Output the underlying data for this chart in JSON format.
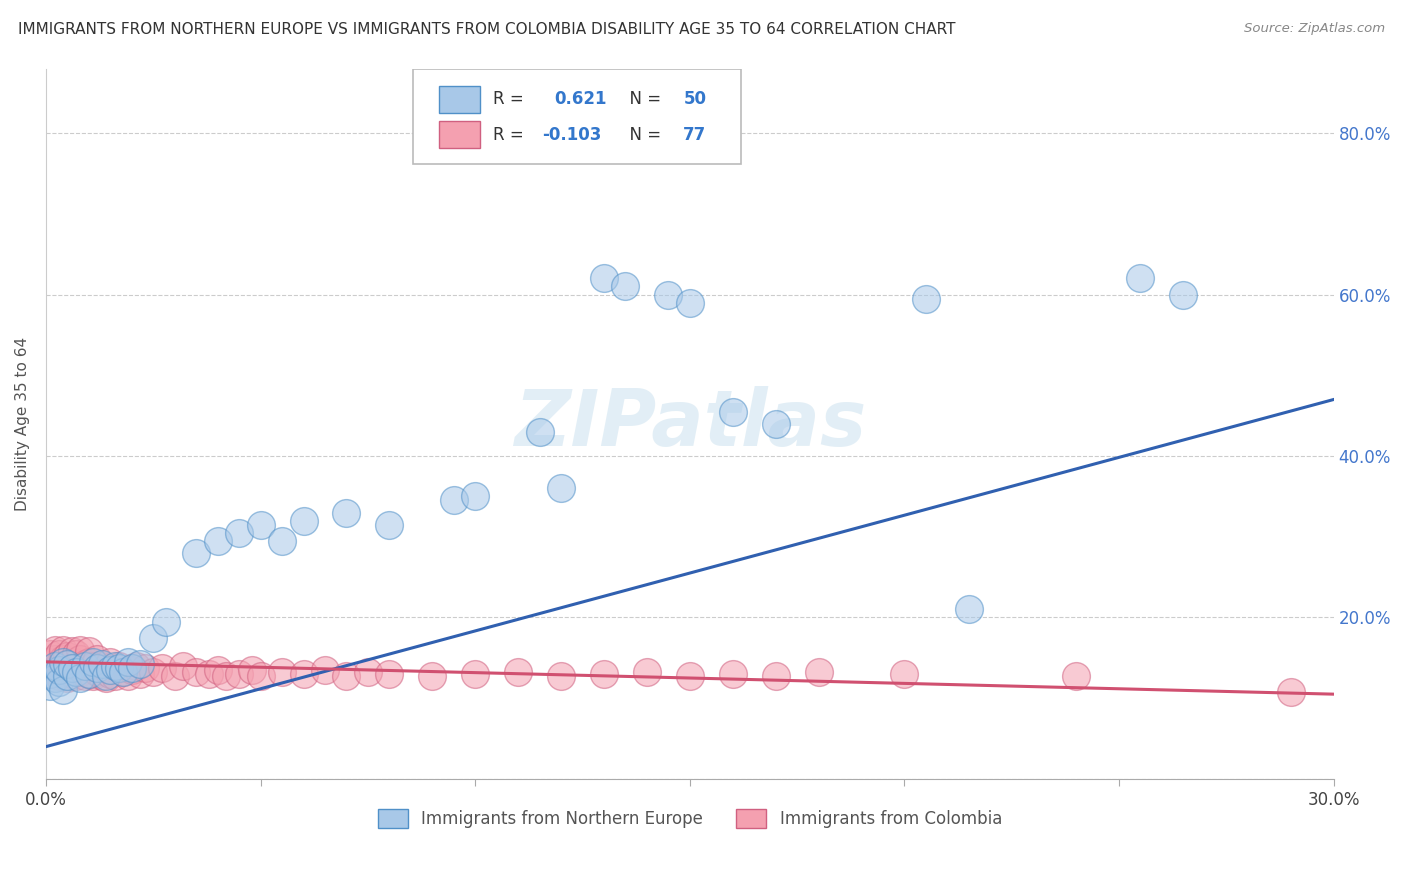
{
  "title": "IMMIGRANTS FROM NORTHERN EUROPE VS IMMIGRANTS FROM COLOMBIA DISABILITY AGE 35 TO 64 CORRELATION CHART",
  "source": "Source: ZipAtlas.com",
  "ylabel": "Disability Age 35 to 64",
  "xlim": [
    0.0,
    0.3
  ],
  "ylim": [
    0.0,
    0.88
  ],
  "xticks": [
    0.0,
    0.05,
    0.1,
    0.15,
    0.2,
    0.25,
    0.3
  ],
  "xticklabels": [
    "0.0%",
    "",
    "",
    "",
    "",
    "",
    "30.0%"
  ],
  "yticks": [
    0.0,
    0.2,
    0.4,
    0.6,
    0.8
  ],
  "yticklabels": [
    "",
    "20.0%",
    "40.0%",
    "60.0%",
    "80.0%"
  ],
  "r_blue": 0.621,
  "n_blue": 50,
  "r_pink": -0.103,
  "n_pink": 77,
  "blue_color": "#a8c8e8",
  "pink_color": "#f4a0b0",
  "blue_edge_color": "#5090c8",
  "pink_edge_color": "#d06080",
  "blue_line_color": "#3060b0",
  "pink_line_color": "#d05070",
  "legend_label_blue": "Immigrants from Northern Europe",
  "legend_label_pink": "Immigrants from Colombia",
  "watermark": "ZIPatlas",
  "blue_line_x": [
    0.0,
    0.3
  ],
  "blue_line_y": [
    0.04,
    0.47
  ],
  "pink_line_x": [
    0.0,
    0.3
  ],
  "pink_line_y": [
    0.145,
    0.105
  ],
  "blue_scatter_x": [
    0.001,
    0.001,
    0.002,
    0.002,
    0.003,
    0.003,
    0.004,
    0.004,
    0.005,
    0.005,
    0.006,
    0.007,
    0.008,
    0.009,
    0.01,
    0.011,
    0.012,
    0.013,
    0.014,
    0.015,
    0.016,
    0.017,
    0.018,
    0.019,
    0.02,
    0.022,
    0.025,
    0.028,
    0.035,
    0.04,
    0.045,
    0.05,
    0.055,
    0.06,
    0.07,
    0.08,
    0.095,
    0.1,
    0.115,
    0.12,
    0.13,
    0.135,
    0.145,
    0.15,
    0.16,
    0.17,
    0.205,
    0.215,
    0.255,
    0.265
  ],
  "blue_scatter_y": [
    0.115,
    0.13,
    0.125,
    0.14,
    0.12,
    0.135,
    0.11,
    0.145,
    0.128,
    0.142,
    0.138,
    0.132,
    0.125,
    0.14,
    0.13,
    0.145,
    0.138,
    0.142,
    0.128,
    0.135,
    0.14,
    0.138,
    0.132,
    0.145,
    0.138,
    0.142,
    0.175,
    0.195,
    0.28,
    0.295,
    0.305,
    0.315,
    0.295,
    0.32,
    0.33,
    0.315,
    0.345,
    0.35,
    0.43,
    0.36,
    0.62,
    0.61,
    0.6,
    0.59,
    0.455,
    0.44,
    0.595,
    0.21,
    0.62,
    0.6
  ],
  "pink_scatter_x": [
    0.001,
    0.001,
    0.001,
    0.002,
    0.002,
    0.002,
    0.003,
    0.003,
    0.003,
    0.004,
    0.004,
    0.004,
    0.005,
    0.005,
    0.005,
    0.006,
    0.006,
    0.006,
    0.007,
    0.007,
    0.007,
    0.008,
    0.008,
    0.008,
    0.009,
    0.009,
    0.01,
    0.01,
    0.01,
    0.011,
    0.011,
    0.012,
    0.012,
    0.013,
    0.013,
    0.014,
    0.014,
    0.015,
    0.015,
    0.016,
    0.017,
    0.018,
    0.019,
    0.02,
    0.021,
    0.022,
    0.023,
    0.025,
    0.027,
    0.03,
    0.032,
    0.035,
    0.038,
    0.04,
    0.042,
    0.045,
    0.048,
    0.05,
    0.055,
    0.06,
    0.065,
    0.07,
    0.075,
    0.08,
    0.09,
    0.1,
    0.11,
    0.12,
    0.13,
    0.14,
    0.15,
    0.16,
    0.17,
    0.18,
    0.2,
    0.24,
    0.29
  ],
  "pink_scatter_y": [
    0.13,
    0.145,
    0.155,
    0.135,
    0.148,
    0.16,
    0.128,
    0.142,
    0.155,
    0.132,
    0.148,
    0.16,
    0.125,
    0.138,
    0.152,
    0.13,
    0.145,
    0.158,
    0.128,
    0.14,
    0.155,
    0.132,
    0.148,
    0.16,
    0.128,
    0.142,
    0.13,
    0.145,
    0.158,
    0.128,
    0.14,
    0.132,
    0.148,
    0.128,
    0.14,
    0.125,
    0.138,
    0.13,
    0.145,
    0.128,
    0.14,
    0.132,
    0.128,
    0.135,
    0.14,
    0.13,
    0.138,
    0.132,
    0.138,
    0.128,
    0.14,
    0.132,
    0.13,
    0.135,
    0.128,
    0.13,
    0.135,
    0.128,
    0.132,
    0.13,
    0.135,
    0.128,
    0.132,
    0.13,
    0.128,
    0.13,
    0.132,
    0.128,
    0.13,
    0.132,
    0.128,
    0.13,
    0.128,
    0.132,
    0.13,
    0.128,
    0.108
  ],
  "background_color": "#ffffff",
  "grid_color": "#cccccc"
}
